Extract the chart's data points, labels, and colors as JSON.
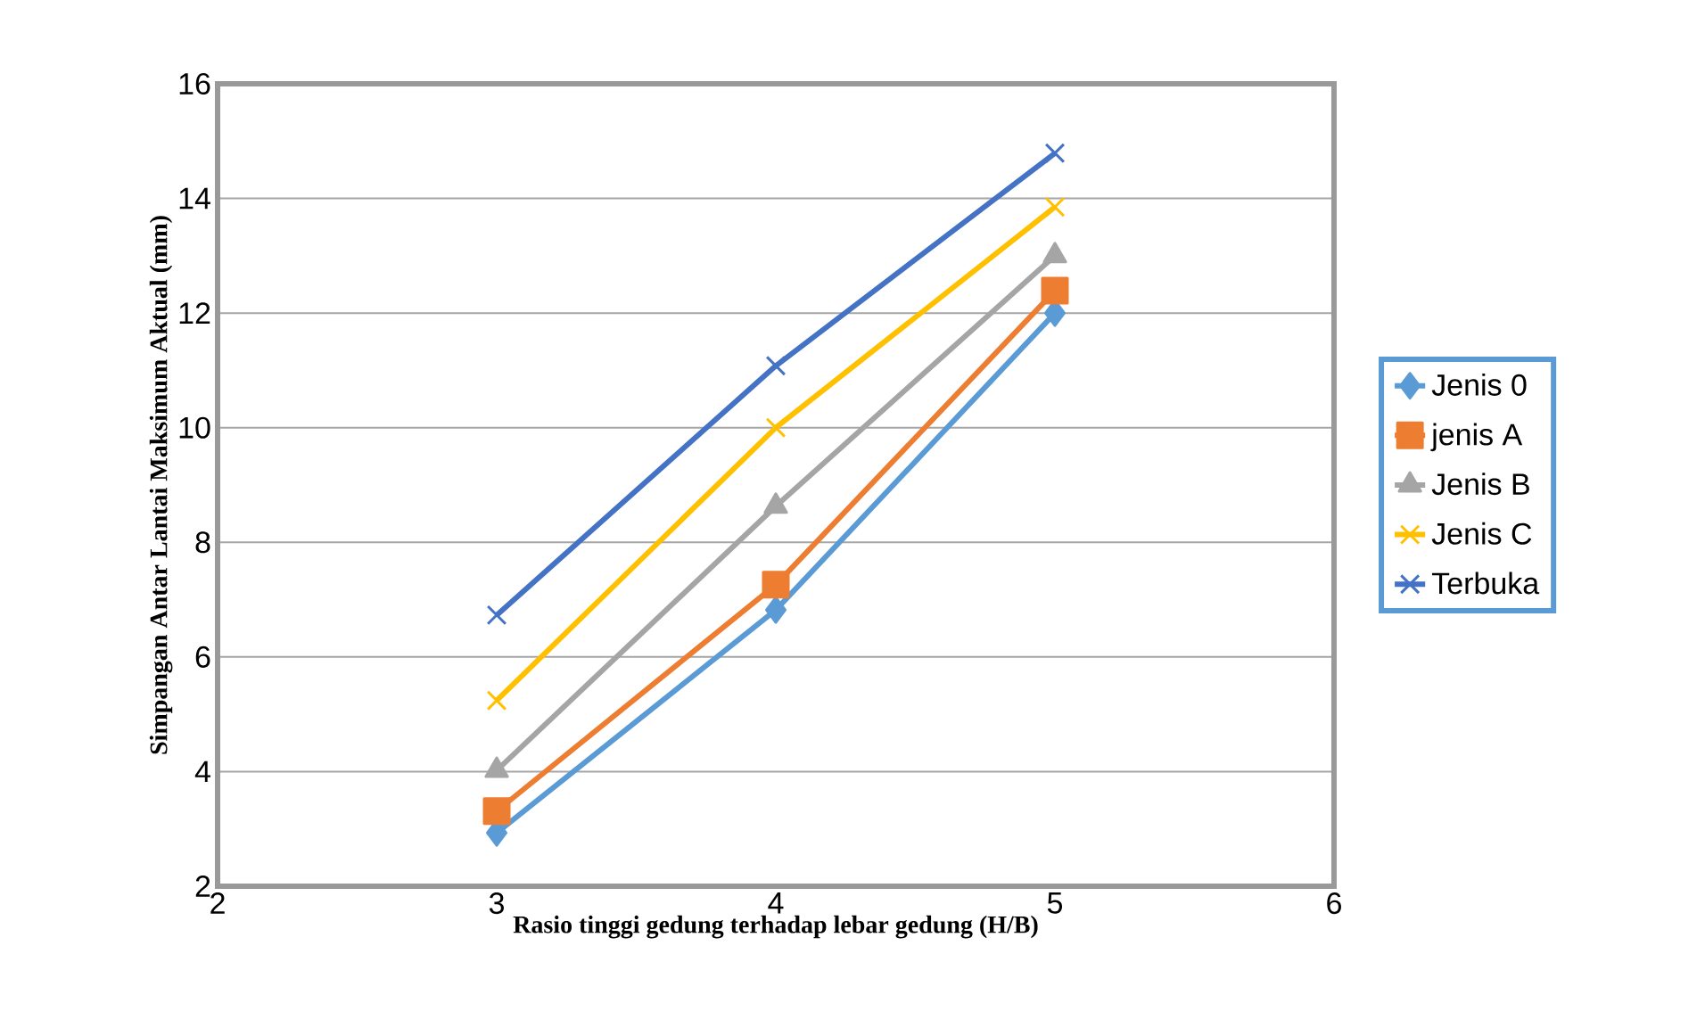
{
  "chart_data": {
    "type": "line",
    "xlabel": "Rasio tinggi gedung terhadap lebar gedung (H/B)",
    "ylabel": "Simpangan Antar Lantai Maksimum Aktual (mm)",
    "x": [
      3,
      4,
      5
    ],
    "series": [
      {
        "name": "Jenis 0",
        "color": "#5b9bd5",
        "marker": "diamond",
        "values": [
          2.93,
          6.82,
          12.0
        ]
      },
      {
        "name": "jenis A",
        "color": "#ed7d31",
        "marker": "square",
        "values": [
          3.31,
          7.26,
          12.39
        ]
      },
      {
        "name": "Jenis B",
        "color": "#a5a5a5",
        "marker": "triangle",
        "values": [
          4.02,
          8.63,
          13.0
        ]
      },
      {
        "name": "Jenis C",
        "color": "#ffc000",
        "marker": "cross",
        "values": [
          5.24,
          10.0,
          13.85
        ]
      },
      {
        "name": "Terbuka",
        "color": "#4472c4",
        "marker": "cross",
        "values": [
          6.73,
          11.08,
          14.79
        ]
      }
    ],
    "xlim": [
      2,
      6
    ],
    "xticks": [
      2,
      3,
      4,
      5,
      6
    ],
    "ylim": [
      2,
      16
    ],
    "yticks": [
      2,
      4,
      6,
      8,
      10,
      12,
      14,
      16
    ],
    "grid": "y",
    "legend": "right",
    "line_style": "solid"
  }
}
